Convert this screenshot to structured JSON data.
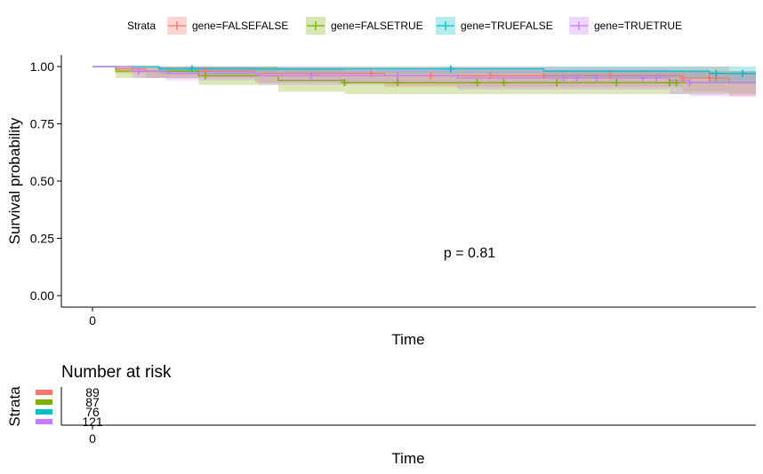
{
  "chart_data": [
    {
      "type": "line",
      "subtype": "kaplan-meier",
      "title": "",
      "xlabel": "Time",
      "ylabel": "Survival probability",
      "xlim": [
        0,
        10
      ],
      "ylim": [
        0,
        1
      ],
      "x_ticks": [
        "0"
      ],
      "y_ticks": [
        "0.00",
        "0.25",
        "0.50",
        "0.75",
        "1.00"
      ],
      "grid": false,
      "legend": {
        "title": "Strata",
        "position": "top",
        "entries": [
          "gene=FALSEFALSE",
          "gene=FALSETRUE",
          "gene=TRUEFALSE",
          "gene=TRUETRUE"
        ]
      },
      "annotation": "p = 0.81",
      "series": [
        {
          "name": "gene=FALSEFALSE",
          "color": "#F8766D",
          "steps": [
            [
              0,
              1.0
            ],
            [
              0.35,
              0.99
            ],
            [
              0.8,
              0.98
            ],
            [
              2.45,
              0.97
            ],
            [
              4.4,
              0.96
            ],
            [
              8.9,
              0.95
            ],
            [
              9.6,
              0.93
            ]
          ],
          "ci": [
            [
              0,
              1.0,
              1.0
            ],
            [
              0.35,
              0.97,
              1.0
            ],
            [
              0.8,
              0.95,
              1.0
            ],
            [
              2.45,
              0.93,
              1.0
            ],
            [
              4.4,
              0.91,
              1.0
            ],
            [
              8.9,
              0.89,
              1.0
            ],
            [
              9.6,
              0.87,
              0.98
            ]
          ],
          "censor_x": [
            1.7,
            4.2,
            5.1,
            6.0,
            6.8,
            7.8,
            8.9,
            9.3,
            9.4
          ]
        },
        {
          "name": "gene=FALSETRUE",
          "color": "#7CAE00",
          "steps": [
            [
              0,
              1.0
            ],
            [
              0.35,
              0.98
            ],
            [
              1.6,
              0.96
            ],
            [
              2.8,
              0.94
            ],
            [
              3.8,
              0.93
            ],
            [
              4.6,
              0.93
            ]
          ],
          "ci": [
            [
              0,
              1.0,
              1.0
            ],
            [
              0.35,
              0.95,
              1.0
            ],
            [
              1.6,
              0.92,
              1.0
            ],
            [
              2.8,
              0.89,
              0.99
            ],
            [
              3.8,
              0.88,
              0.98
            ],
            [
              4.6,
              0.88,
              0.98
            ]
          ],
          "censor_x": [
            1.7,
            3.8,
            4.6,
            5.8,
            6.2,
            7.0,
            7.9,
            8.7,
            8.8
          ]
        },
        {
          "name": "gene=TRUEFALSE",
          "color": "#00BFC4",
          "steps": [
            [
              0,
              1.0
            ],
            [
              1.0,
              0.99
            ],
            [
              6.8,
              0.98
            ],
            [
              9.3,
              0.97
            ]
          ],
          "ci": [
            [
              0,
              1.0,
              1.0
            ],
            [
              1.0,
              0.97,
              1.0
            ],
            [
              6.8,
              0.95,
              1.0
            ],
            [
              9.3,
              0.93,
              1.0
            ]
          ],
          "censor_x": [
            1.5,
            5.4,
            9.4,
            9.8
          ]
        },
        {
          "name": "gene=TRUETRUE",
          "color": "#C77CFF",
          "steps": [
            [
              0,
              1.0
            ],
            [
              0.6,
              0.98
            ],
            [
              1.1,
              0.97
            ],
            [
              2.5,
              0.96
            ],
            [
              5.5,
              0.95
            ],
            [
              8.7,
              0.94
            ],
            [
              9.0,
              0.93
            ]
          ],
          "ci": [
            [
              0,
              1.0,
              1.0
            ],
            [
              0.6,
              0.95,
              1.0
            ],
            [
              1.1,
              0.94,
              1.0
            ],
            [
              2.5,
              0.92,
              0.99
            ],
            [
              5.5,
              0.9,
              0.99
            ],
            [
              8.7,
              0.88,
              0.98
            ],
            [
              9.0,
              0.87,
              0.98
            ]
          ],
          "censor_x": [
            0.7,
            3.3,
            4.6,
            7.1,
            7.3,
            7.6,
            8.3,
            8.5,
            9.0
          ]
        }
      ]
    },
    {
      "type": "table",
      "title": "Number at risk",
      "xlabel": "Time",
      "ylabel": "Strata",
      "x_ticks": [
        "0"
      ],
      "rows": [
        {
          "name": "gene=FALSEFALSE",
          "color": "#F8766D",
          "values": [
            "89"
          ]
        },
        {
          "name": "gene=FALSETRUE",
          "color": "#7CAE00",
          "values": [
            "87"
          ]
        },
        {
          "name": "gene=TRUEFALSE",
          "color": "#00BFC4",
          "values": [
            "76"
          ]
        },
        {
          "name": "gene=TRUETRUE",
          "color": "#C77CFF",
          "values": [
            "121"
          ]
        }
      ]
    }
  ]
}
